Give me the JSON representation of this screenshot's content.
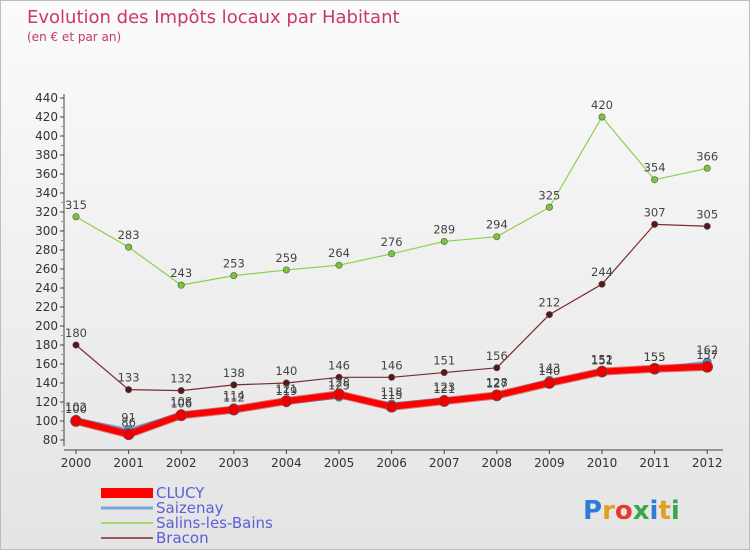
{
  "chart_data": {
    "type": "line",
    "title": "Evolution des Impôts locaux par Habitant",
    "subtitle": "(en € et par an)",
    "xlabel": "",
    "ylabel": "",
    "ylim": [
      80,
      440
    ],
    "ytick_step": 20,
    "categories": [
      "2000",
      "2001",
      "2002",
      "2003",
      "2004",
      "2005",
      "2006",
      "2007",
      "2008",
      "2009",
      "2010",
      "2011",
      "2012"
    ],
    "series": [
      {
        "name": "Salins-les-Bains",
        "color": "#8cd14a",
        "stroke": "#8cd14a",
        "width": 1.2,
        "marker": "#7cc43a",
        "values": [
          315,
          283,
          243,
          253,
          259,
          264,
          276,
          289,
          294,
          325,
          420,
          354,
          366
        ],
        "labels": [
          "315",
          "283",
          "243",
          "253",
          "259",
          "264",
          "276",
          "289",
          "294",
          "325",
          "420",
          "354",
          "366"
        ]
      },
      {
        "name": "Bracon",
        "color": "#6e1f22",
        "stroke": "#7a2c2f",
        "width": 1.2,
        "marker": "#5a1518",
        "values": [
          180,
          133,
          132,
          138,
          140,
          146,
          146,
          151,
          156,
          212,
          244,
          307,
          305
        ],
        "labels": [
          "180",
          "133",
          "132",
          "138",
          "140",
          "146",
          "146",
          "151",
          "156",
          "212",
          "244",
          "307",
          "305"
        ]
      },
      {
        "name": "Saizenay",
        "color": "#7aa7d8",
        "stroke": "#7aa7d8",
        "width": 3,
        "marker": "#4f8fd0",
        "values": [
          102,
          91,
          108,
          114,
          119,
          125,
          118,
          123,
          128,
          143,
          151,
          155,
          162
        ],
        "labels": [
          "102",
          "91",
          "108",
          "114",
          "119",
          "125",
          "118",
          "123",
          "128",
          "143",
          "151",
          "155",
          "162"
        ]
      },
      {
        "name": "CLUCY",
        "color": "#ff0000",
        "stroke": "#ff0000",
        "width": 6,
        "marker": "#ee0000",
        "values": [
          100,
          86,
          106,
          112,
          121,
          128,
          115,
          121,
          127,
          140,
          152,
          155,
          157
        ],
        "labels": [
          "100",
          "86",
          "106",
          "112",
          "121",
          "128",
          "115",
          "121",
          "127",
          "140",
          "152",
          "155",
          "157"
        ]
      }
    ],
    "legend_order": [
      "CLUCY",
      "Saizenay",
      "Salins-les-Bains",
      "Bracon"
    ],
    "grid": false,
    "legend_position": "bottom-left"
  },
  "logo": {
    "text": "Proxiti"
  }
}
